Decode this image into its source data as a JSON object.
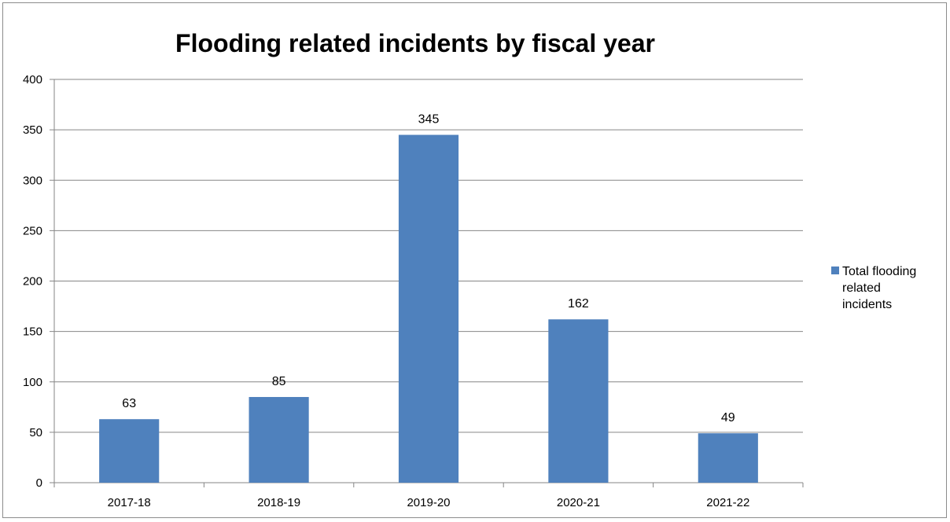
{
  "chart_data": {
    "type": "bar",
    "title": "Flooding related incidents by fiscal year",
    "categories": [
      "2017-18",
      "2018-19",
      "2019-20",
      "2020-21",
      "2021-22"
    ],
    "series": [
      {
        "name": "Total flooding related incidents",
        "values": [
          63,
          85,
          345,
          162,
          49
        ],
        "color": "#4f81bd"
      }
    ],
    "data_labels": [
      "63",
      "85",
      "345",
      "162",
      "49"
    ],
    "ylim": [
      0,
      400
    ],
    "yticks": [
      0,
      50,
      100,
      150,
      200,
      250,
      300,
      350,
      400
    ],
    "xlabel": "",
    "ylabel": "",
    "grid": true,
    "legend": {
      "position": "right",
      "lines": [
        "Total flooding",
        "related",
        "incidents"
      ]
    }
  }
}
